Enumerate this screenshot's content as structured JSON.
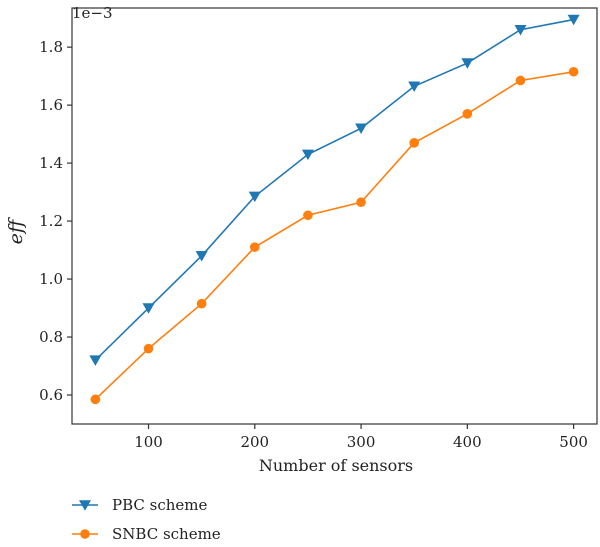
{
  "chart_data": {
    "type": "line",
    "xlabel": "Number of sensors",
    "ylabel": "eff",
    "y_scale_label": "1e−3",
    "xlim": [
      28,
      522
    ],
    "ylim": [
      0.5,
      1.935
    ],
    "x_ticks": [
      100,
      200,
      300,
      400,
      500
    ],
    "y_ticks": [
      0.6,
      0.8,
      1.0,
      1.2,
      1.4,
      1.6,
      1.8
    ],
    "x": [
      50,
      100,
      150,
      200,
      250,
      300,
      350,
      400,
      450,
      500
    ],
    "grid": false,
    "legend_placement": "bottom-left, below plot",
    "series": [
      {
        "name": "PBC scheme",
        "color": "#1f77b4",
        "marker": "triangle-down",
        "values": [
          0.72,
          0.9,
          1.08,
          1.285,
          1.43,
          1.52,
          1.665,
          1.745,
          1.86,
          1.895
        ]
      },
      {
        "name": "SNBC scheme",
        "color": "#ff7f0e",
        "marker": "circle",
        "values": [
          0.585,
          0.76,
          0.915,
          1.11,
          1.22,
          1.265,
          1.47,
          1.57,
          1.685,
          1.715
        ]
      }
    ]
  }
}
